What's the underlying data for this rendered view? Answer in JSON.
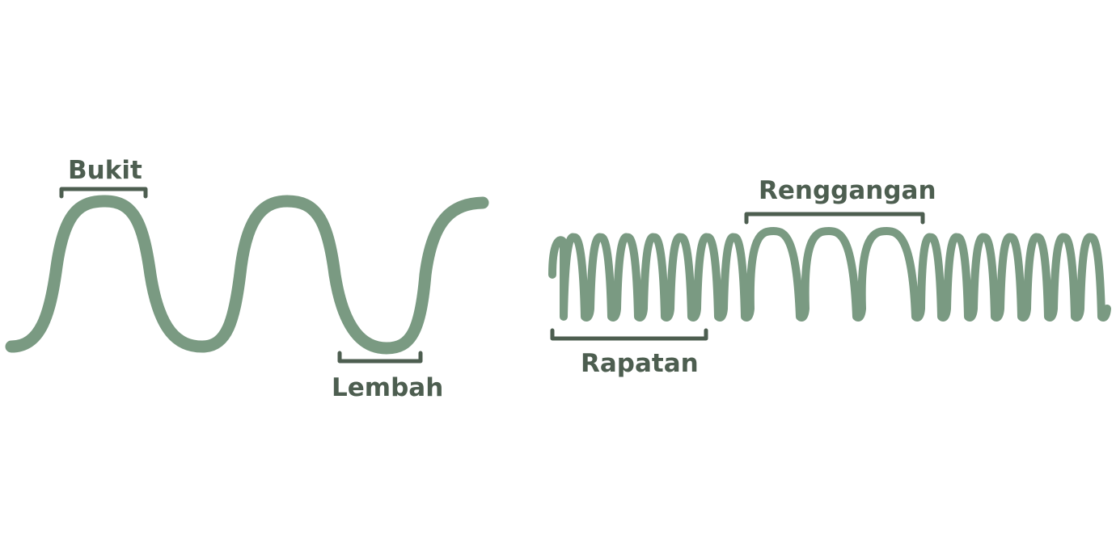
{
  "colors": {
    "wave": "#7a9a82",
    "bracket": "#4d5e50",
    "text": "#4d5e50",
    "background": "#ffffff"
  },
  "transverse": {
    "crest_label": "Bukit",
    "trough_label": "Lembah"
  },
  "longitudinal": {
    "compression_label": "Rapatan",
    "rarefaction_label": "Renggangan"
  }
}
